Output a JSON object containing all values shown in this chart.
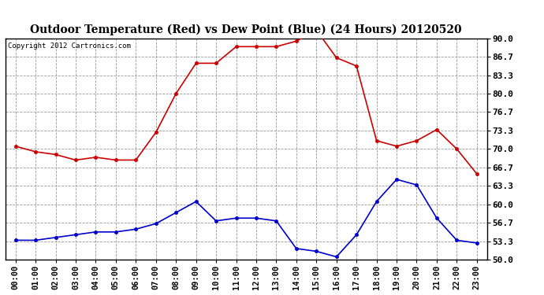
{
  "title": "Outdoor Temperature (Red) vs Dew Point (Blue) (24 Hours) 20120520",
  "copyright": "Copyright 2012 Cartronics.com",
  "hours": [
    "00:00",
    "01:00",
    "02:00",
    "03:00",
    "04:00",
    "05:00",
    "06:00",
    "07:00",
    "08:00",
    "09:00",
    "10:00",
    "11:00",
    "12:00",
    "13:00",
    "14:00",
    "15:00",
    "16:00",
    "17:00",
    "18:00",
    "19:00",
    "20:00",
    "21:00",
    "22:00",
    "23:00"
  ],
  "temp": [
    70.5,
    69.5,
    69.0,
    68.0,
    68.5,
    68.0,
    68.0,
    73.0,
    80.0,
    85.5,
    85.5,
    88.5,
    88.5,
    88.5,
    89.5,
    91.5,
    86.5,
    85.0,
    71.5,
    70.5,
    71.5,
    73.5,
    70.0,
    65.5
  ],
  "dew": [
    53.5,
    53.5,
    54.0,
    54.5,
    55.0,
    55.0,
    55.5,
    56.5,
    58.5,
    60.5,
    57.0,
    57.5,
    57.5,
    57.0,
    52.0,
    51.5,
    50.5,
    54.5,
    60.5,
    64.5,
    63.5,
    57.5,
    53.5,
    53.0
  ],
  "temp_color": "#cc0000",
  "dew_color": "#0000cc",
  "bg_color": "#ffffff",
  "grid_color": "#999999",
  "ylim": [
    50.0,
    90.0
  ],
  "yticks": [
    50.0,
    53.3,
    56.7,
    60.0,
    63.3,
    66.7,
    70.0,
    73.3,
    76.7,
    80.0,
    83.3,
    86.7,
    90.0
  ],
  "ytick_labels": [
    "50.0",
    "53.3",
    "56.7",
    "60.0",
    "63.3",
    "66.7",
    "70.0",
    "73.3",
    "76.7",
    "80.0",
    "83.3",
    "86.7",
    "90.0"
  ]
}
